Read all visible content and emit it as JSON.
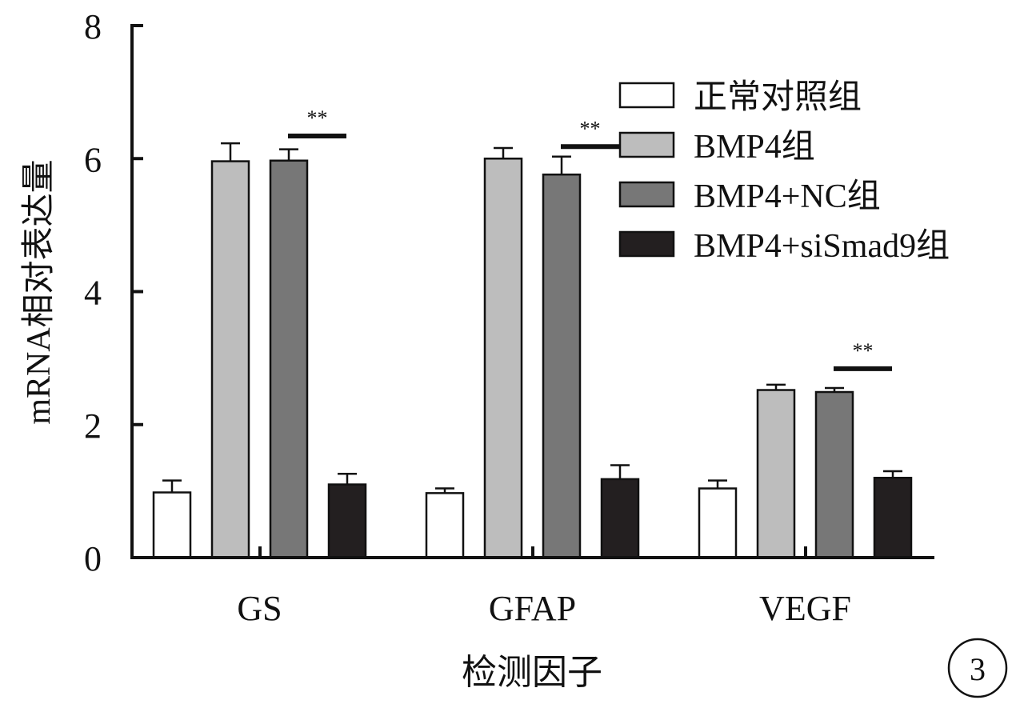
{
  "panel_label": "3",
  "chart_data": {
    "type": "bar",
    "xlabel": "检测因子",
    "ylabel": "mRNA相对表达量",
    "ylim": [
      0,
      8
    ],
    "yticks": [
      0,
      2,
      4,
      6,
      8
    ],
    "categories": [
      "GS",
      "GFAP",
      "VEGF"
    ],
    "legend_position": "top-right",
    "series": [
      {
        "name": "正常对照组",
        "color": "#ffffff",
        "values": [
          0.98,
          0.97,
          1.04
        ],
        "errors": [
          0.18,
          0.07,
          0.12
        ]
      },
      {
        "name": "BMP4组",
        "color": "#bdbdbd",
        "values": [
          5.96,
          6.0,
          2.52
        ],
        "errors": [
          0.27,
          0.16,
          0.08
        ]
      },
      {
        "name": "BMP4+NC组",
        "color": "#777777",
        "values": [
          5.97,
          5.76,
          2.49
        ],
        "errors": [
          0.17,
          0.27,
          0.06
        ]
      },
      {
        "name": "BMP4+siSmad9组",
        "color": "#231f20",
        "values": [
          1.1,
          1.18,
          1.2
        ],
        "errors": [
          0.16,
          0.21,
          0.1
        ]
      }
    ],
    "annotations": [
      {
        "category": "GS",
        "text": "**",
        "y": 6.34
      },
      {
        "category": "GFAP",
        "text": "**",
        "y": 6.18
      },
      {
        "category": "VEGF",
        "text": "**",
        "y": 2.84
      }
    ]
  }
}
